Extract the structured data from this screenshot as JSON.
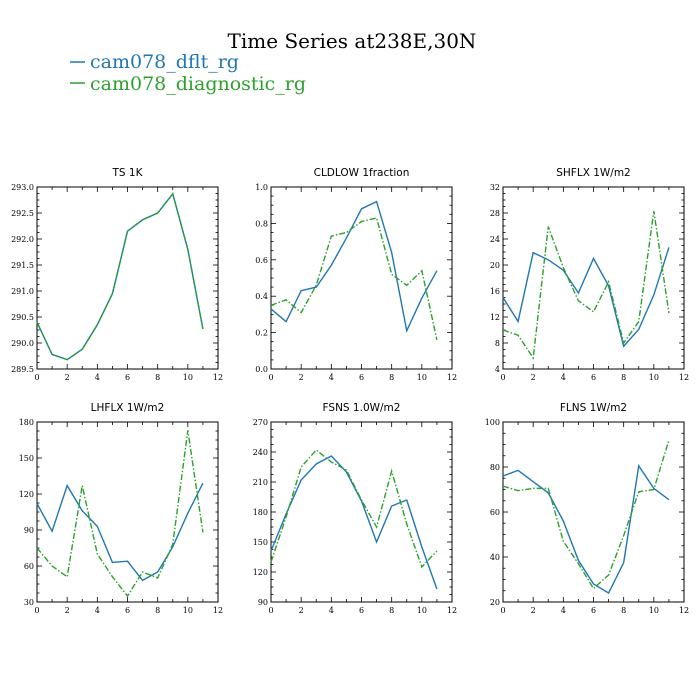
{
  "figure": {
    "title": "Time Series at238E,30N",
    "legend": [
      {
        "label": "cam078_dflt_rg",
        "color": "#1f77b4",
        "dash": "solid"
      },
      {
        "label": "cam078_diagnostic_rg",
        "color": "#2ca02c",
        "dash": "dashdot"
      }
    ]
  },
  "chart_data": [
    {
      "type": "line",
      "title": "TS   1K",
      "x": [
        0,
        1,
        2,
        3,
        4,
        5,
        6,
        7,
        8,
        9,
        10,
        11
      ],
      "xlim": [
        0,
        12
      ],
      "xticks": [
        "0",
        "2",
        "4",
        "6",
        "8",
        "10",
        "12"
      ],
      "ylim": [
        289.5,
        293.0
      ],
      "yticks": [
        "289.5",
        "290.0",
        "290.5",
        "291.0",
        "291.5",
        "292.0",
        "292.5",
        "293.0"
      ],
      "series": [
        {
          "name": "cam078_dflt_rg",
          "values": [
            290.4,
            289.78,
            289.68,
            289.88,
            290.35,
            290.95,
            292.15,
            292.37,
            292.5,
            292.87,
            291.8,
            290.27
          ]
        },
        {
          "name": "cam078_diagnostic_rg",
          "values": [
            290.4,
            289.78,
            289.68,
            289.88,
            290.35,
            290.95,
            292.15,
            292.37,
            292.5,
            292.87,
            291.8,
            290.27
          ]
        }
      ]
    },
    {
      "type": "line",
      "title": "CLDLOW   1fraction",
      "x": [
        0,
        1,
        2,
        3,
        4,
        5,
        6,
        7,
        8,
        9,
        10,
        11
      ],
      "xlim": [
        0,
        12
      ],
      "xticks": [
        "0",
        "2",
        "4",
        "6",
        "8",
        "10",
        "12"
      ],
      "ylim": [
        0.0,
        1.0
      ],
      "yticks": [
        "0.0",
        "0.2",
        "0.4",
        "0.6",
        "0.8",
        "1.0"
      ],
      "series": [
        {
          "name": "cam078_dflt_rg",
          "values": [
            0.33,
            0.26,
            0.43,
            0.45,
            0.57,
            0.72,
            0.88,
            0.92,
            0.64,
            0.21,
            0.39,
            0.54
          ]
        },
        {
          "name": "cam078_diagnostic_rg",
          "values": [
            0.35,
            0.38,
            0.31,
            0.46,
            0.73,
            0.75,
            0.81,
            0.83,
            0.52,
            0.46,
            0.54,
            0.16
          ]
        }
      ]
    },
    {
      "type": "line",
      "title": "SHFLX   1W/m2",
      "x": [
        0,
        1,
        2,
        3,
        4,
        5,
        6,
        7,
        8,
        9,
        10,
        11
      ],
      "xlim": [
        0,
        12
      ],
      "xticks": [
        "0",
        "2",
        "4",
        "6",
        "8",
        "10",
        "12"
      ],
      "ylim": [
        4,
        32
      ],
      "yticks": [
        "4",
        "8",
        "12",
        "16",
        "20",
        "24",
        "28",
        "32"
      ],
      "series": [
        {
          "name": "cam078_dflt_rg",
          "values": [
            15.0,
            11.3,
            21.9,
            20.8,
            19.2,
            15.7,
            21.0,
            16.8,
            7.5,
            10.1,
            15.4,
            22.7
          ]
        },
        {
          "name": "cam078_diagnostic_rg",
          "values": [
            10.0,
            9.2,
            5.7,
            25.9,
            19.6,
            14.5,
            12.8,
            17.4,
            8.0,
            11.3,
            28.3,
            12.6
          ]
        }
      ]
    },
    {
      "type": "line",
      "title": "LHFLX   1W/m2",
      "x": [
        0,
        1,
        2,
        3,
        4,
        5,
        6,
        7,
        8,
        9,
        10,
        11
      ],
      "xlim": [
        0,
        12
      ],
      "xticks": [
        "0",
        "2",
        "4",
        "6",
        "8",
        "10",
        "12"
      ],
      "ylim": [
        30,
        180
      ],
      "yticks": [
        "30",
        "60",
        "90",
        "120",
        "150",
        "180"
      ],
      "series": [
        {
          "name": "cam078_dflt_rg",
          "values": [
            112,
            89,
            127,
            106,
            93,
            63,
            64,
            48,
            55,
            76,
            104,
            129
          ]
        },
        {
          "name": "cam078_diagnostic_rg",
          "values": [
            75,
            60,
            51,
            127,
            70,
            51,
            35,
            55,
            50,
            78,
            173,
            88
          ]
        }
      ]
    },
    {
      "type": "line",
      "title": "FSNS   1.0W/m2",
      "x": [
        0,
        1,
        2,
        3,
        4,
        5,
        6,
        7,
        8,
        9,
        10,
        11
      ],
      "xlim": [
        0,
        12
      ],
      "xticks": [
        "0",
        "2",
        "4",
        "6",
        "8",
        "10",
        "12"
      ],
      "ylim": [
        90,
        270
      ],
      "yticks": [
        "90",
        "120",
        "150",
        "180",
        "210",
        "240",
        "270"
      ],
      "series": [
        {
          "name": "cam078_dflt_rg",
          "values": [
            141,
            178,
            212,
            228,
            236,
            220,
            191,
            150,
            186,
            192,
            145,
            103
          ]
        },
        {
          "name": "cam078_diagnostic_rg",
          "values": [
            130,
            175,
            225,
            242,
            230,
            222,
            192,
            165,
            221,
            168,
            125,
            141
          ]
        }
      ]
    },
    {
      "type": "line",
      "title": "FLNS   1W/m2",
      "x": [
        0,
        1,
        2,
        3,
        4,
        5,
        6,
        7,
        8,
        9,
        10,
        11
      ],
      "xlim": [
        0,
        12
      ],
      "xticks": [
        "0",
        "2",
        "4",
        "6",
        "8",
        "10",
        "12"
      ],
      "ylim": [
        20,
        100
      ],
      "yticks": [
        "20",
        "40",
        "60",
        "80",
        "100"
      ],
      "series": [
        {
          "name": "cam078_dflt_rg",
          "values": [
            76,
            78.5,
            73.5,
            68.5,
            56,
            38.5,
            28,
            24,
            37.5,
            80.5,
            70.5,
            65.5
          ]
        },
        {
          "name": "cam078_diagnostic_rg",
          "values": [
            71.5,
            69.5,
            70.5,
            70.5,
            47,
            37,
            26,
            32,
            49.5,
            69,
            70,
            92
          ]
        }
      ]
    }
  ]
}
